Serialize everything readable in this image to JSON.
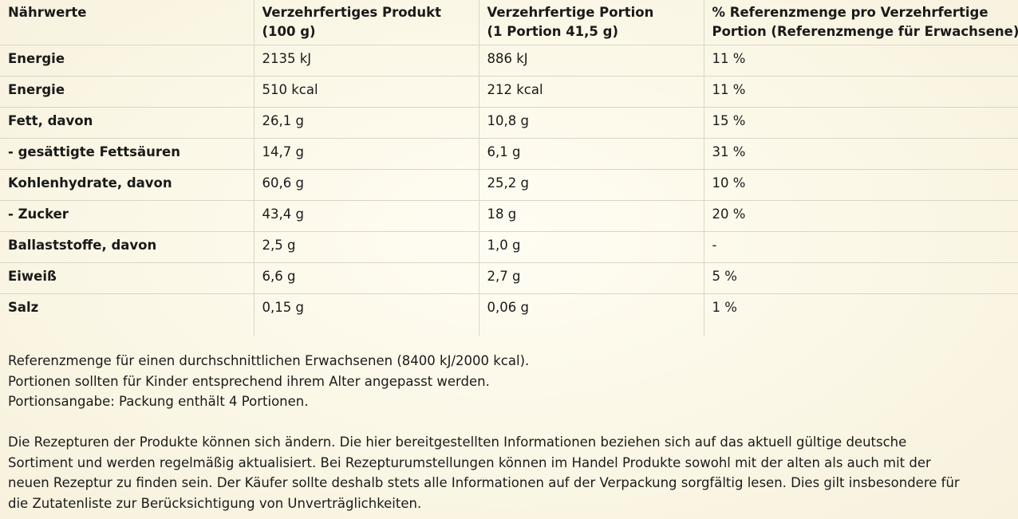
{
  "table": {
    "headers": [
      [
        "Nährwerte"
      ],
      [
        "Verzehrfertiges Produkt",
        "(100 g)"
      ],
      [
        "Verzehrfertige Portion",
        "(1 Portion 41,5 g)"
      ],
      [
        "% Referenzmenge pro Verzehrfertige",
        "Portion (Referenzmenge für Erwachsene)"
      ]
    ],
    "rows": [
      {
        "label": "Energie",
        "per100": "2135 kJ",
        "portion": "886 kJ",
        "ri": "11 %"
      },
      {
        "label": "Energie",
        "per100": "510 kcal",
        "portion": "212 kcal",
        "ri": "11 %"
      },
      {
        "label": "Fett, davon",
        "per100": "26,1 g",
        "portion": "10,8 g",
        "ri": "15 %"
      },
      {
        "label": "- gesättigte Fettsäuren",
        "per100": "14,7 g",
        "portion": "6,1 g",
        "ri": "31 %"
      },
      {
        "label": "Kohlenhydrate, davon",
        "per100": "60,6 g",
        "portion": "25,2 g",
        "ri": "10 %"
      },
      {
        "label": "- Zucker",
        "per100": "43,4 g",
        "portion": "18 g",
        "ri": "20 %"
      },
      {
        "label": "Ballaststoffe, davon",
        "per100": "2,5 g",
        "portion": "1,0 g",
        "ri": "-"
      },
      {
        "label": "Eiweiß",
        "per100": "6,6 g",
        "portion": "2,7 g",
        "ri": "5 %"
      },
      {
        "label": "Salz",
        "per100": "0,15 g",
        "portion": "0,06 g",
        "ri": "1 %"
      }
    ]
  },
  "notes": [
    "Referenzmenge für einen durchschnittlichen Erwachsenen (8400 kJ/2000 kcal).",
    "Portionen sollten für Kinder entsprechend ihrem Alter angepasst werden.",
    "Portionsangabe: Packung enthält 4 Portionen."
  ],
  "disclaimer": [
    "Die Rezepturen der Produkte können sich ändern. Die hier bereitgestellten Informationen beziehen sich auf das aktuell gültige deutsche",
    "Sortiment und werden regelmäßig aktualisiert. Bei Rezepturumstellungen können im Handel Produkte sowohl mit der alten als auch mit der",
    "neuen Rezeptur zu finden sein. Der Käufer sollte deshalb stets alle Informationen auf der Verpackung sorgfältig lesen. Dies gilt insbesondere für",
    "die Zutatenliste zur Berücksichtigung von Unverträglichkeiten."
  ]
}
